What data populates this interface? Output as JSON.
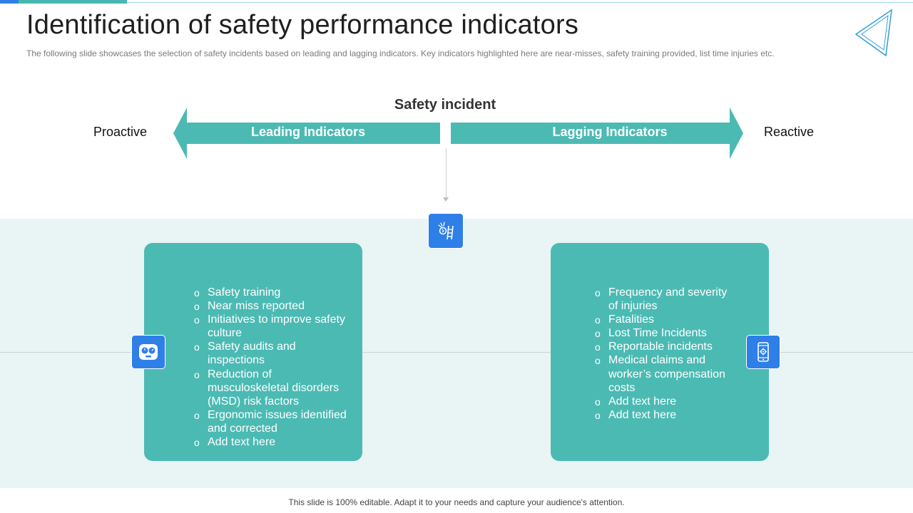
{
  "slide": {
    "title": "Identification of safety performance indicators",
    "subtitle": "The following  slide showcases the selection of safety incidents based on leading and lagging indicators. Key indicators highlighted  here are near-misses, safety training provided,  list time injuries etc.",
    "footer": "This slide is 100% editable. Adapt it to your needs and capture your audience's attention."
  },
  "diagram": {
    "header": "Safety incident",
    "left_label": "Proactive",
    "right_label": "Reactive",
    "leading_label": "Leading Indicators",
    "lagging_label": "Lagging Indicators"
  },
  "leading_items": [
    "Safety training",
    "Near miss reported",
    "Initiatives to improve safety culture",
    "Safety audits and inspections",
    "Reduction of musculoskeletal disorders (MSD) risk factors",
    "Ergonomic issues identified and corrected",
    "Add text here"
  ],
  "lagging_items": [
    "Frequency and severity of injuries",
    "Fatalities",
    "Lost Time Incidents",
    "Reportable incidents",
    "Medical claims and worker’s compensation costs",
    "Add text here",
    "Add text here"
  ],
  "icons": {
    "center": "safety-hazard-icon",
    "left": "gauge-face-icon",
    "right": "mobile-settings-icon"
  },
  "colors": {
    "teal": "#4bbab3",
    "blue": "#2f7fe8",
    "band": "#e8f5f4"
  }
}
